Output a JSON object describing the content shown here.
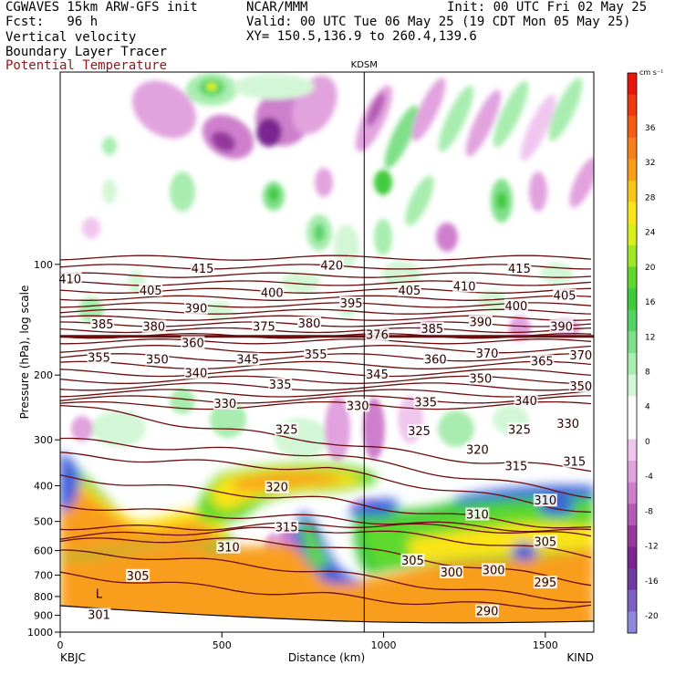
{
  "header": {
    "model": "CGWAVES 15km ARW-GFS init",
    "forecast": "Fcst:   96 h",
    "org": "NCAR/MMM",
    "init": "Init: 00 UTC Fri 02 May 25",
    "valid": "Valid: 00 UTC Tue 06 May 25 (19 CDT Mon 05 May 25)",
    "xy": "XY= 150.5,136.9 to 260.4,139.6",
    "field1": "Vertical velocity",
    "field2": "Boundary Layer Tracer",
    "field3": "Potential Temperature",
    "field3_color": "#8b1a1a"
  },
  "chart_data": {
    "type": "heatmap",
    "title": "",
    "xlabel": "Distance (km)",
    "ylabel": "Pressure (hPa), log scale",
    "xlim": [
      0,
      1650
    ],
    "ylim": [
      1000,
      30
    ],
    "x_ticks": [
      "0",
      "500",
      "1000",
      "1500"
    ],
    "y_ticks": [
      "100",
      "200",
      "300",
      "400",
      "500",
      "600",
      "700",
      "800",
      "900",
      "1000"
    ],
    "station_left": "KBJC",
    "station_right": "KIND",
    "station_mid": "KDSM",
    "station_mid_x_km": 940,
    "colorbar": {
      "unit": "cm s⁻¹",
      "tick_labels": [
        "36",
        "32",
        "28",
        "24",
        "20",
        "16",
        "12",
        "8",
        "4",
        "0",
        "-4",
        "-8",
        "-12",
        "-16",
        "-20"
      ],
      "colors": [
        "#e8170e",
        "#f03a10",
        "#f45e12",
        "#f7801a",
        "#f99e1c",
        "#fbc61b",
        "#fbe419",
        "#d8f01a",
        "#9fe623",
        "#5fd92d",
        "#3fca3d",
        "#54d368",
        "#7fe089",
        "#a8ecaf",
        "#d3f7d6",
        "#ffffff",
        "#ffffff",
        "#f0c6ef",
        "#e1a2de",
        "#cd7fcc",
        "#b35cb3",
        "#95399c",
        "#7a2592",
        "#6e3c9e",
        "#7b62c0",
        "#8c88db"
      ]
    },
    "theta_labels": [
      {
        "v": "410",
        "x": 30,
        "p": 110
      },
      {
        "v": "415",
        "x": 440,
        "p": 103
      },
      {
        "v": "420",
        "x": 840,
        "p": 101
      },
      {
        "v": "415",
        "x": 1420,
        "p": 103
      },
      {
        "v": "405",
        "x": 280,
        "p": 118
      },
      {
        "v": "400",
        "x": 655,
        "p": 120
      },
      {
        "v": "405",
        "x": 1080,
        "p": 118
      },
      {
        "v": "410",
        "x": 1250,
        "p": 115
      },
      {
        "v": "405",
        "x": 1560,
        "p": 122
      },
      {
        "v": "390",
        "x": 420,
        "p": 132
      },
      {
        "v": "395",
        "x": 900,
        "p": 128
      },
      {
        "v": "400",
        "x": 1410,
        "p": 130
      },
      {
        "v": "385",
        "x": 130,
        "p": 146
      },
      {
        "v": "380",
        "x": 290,
        "p": 148
      },
      {
        "v": "375",
        "x": 630,
        "p": 148
      },
      {
        "v": "380",
        "x": 770,
        "p": 145
      },
      {
        "v": "385",
        "x": 1150,
        "p": 150
      },
      {
        "v": "390",
        "x": 1300,
        "p": 144
      },
      {
        "v": "390",
        "x": 1550,
        "p": 148
      },
      {
        "v": "376",
        "x": 980,
        "p": 156
      },
      {
        "v": "360",
        "x": 410,
        "p": 164
      },
      {
        "v": "355",
        "x": 120,
        "p": 180
      },
      {
        "v": "350",
        "x": 300,
        "p": 182
      },
      {
        "v": "345",
        "x": 580,
        "p": 182
      },
      {
        "v": "355",
        "x": 790,
        "p": 176
      },
      {
        "v": "360",
        "x": 1160,
        "p": 182
      },
      {
        "v": "370",
        "x": 1320,
        "p": 175
      },
      {
        "v": "365",
        "x": 1490,
        "p": 184
      },
      {
        "v": "370",
        "x": 1610,
        "p": 177
      },
      {
        "v": "340",
        "x": 420,
        "p": 198
      },
      {
        "v": "335",
        "x": 680,
        "p": 213
      },
      {
        "v": "345",
        "x": 980,
        "p": 200
      },
      {
        "v": "350",
        "x": 1300,
        "p": 205
      },
      {
        "v": "350",
        "x": 1610,
        "p": 215
      },
      {
        "v": "330",
        "x": 510,
        "p": 240
      },
      {
        "v": "330",
        "x": 920,
        "p": 243
      },
      {
        "v": "335",
        "x": 1130,
        "p": 238
      },
      {
        "v": "340",
        "x": 1440,
        "p": 236
      },
      {
        "v": "325",
        "x": 700,
        "p": 282
      },
      {
        "v": "325",
        "x": 1110,
        "p": 285
      },
      {
        "v": "325",
        "x": 1420,
        "p": 282
      },
      {
        "v": "330",
        "x": 1570,
        "p": 272
      },
      {
        "v": "320",
        "x": 1290,
        "p": 320
      },
      {
        "v": "320",
        "x": 670,
        "p": 405
      },
      {
        "v": "315",
        "x": 1410,
        "p": 355
      },
      {
        "v": "315",
        "x": 1590,
        "p": 345
      },
      {
        "v": "315",
        "x": 700,
        "p": 520
      },
      {
        "v": "310",
        "x": 1290,
        "p": 480
      },
      {
        "v": "310",
        "x": 1500,
        "p": 440
      },
      {
        "v": "310",
        "x": 520,
        "p": 590
      },
      {
        "v": "305",
        "x": 1500,
        "p": 570
      },
      {
        "v": "305",
        "x": 1090,
        "p": 640
      },
      {
        "v": "305",
        "x": 240,
        "p": 705
      },
      {
        "v": "300",
        "x": 1210,
        "p": 690
      },
      {
        "v": "300",
        "x": 1340,
        "p": 680
      },
      {
        "v": "295",
        "x": 1500,
        "p": 735
      },
      {
        "v": "290",
        "x": 1320,
        "p": 880
      },
      {
        "v": "301",
        "x": 120,
        "p": 900
      }
    ],
    "low_marker": {
      "label": "L",
      "x": 120,
      "p": 790
    }
  }
}
